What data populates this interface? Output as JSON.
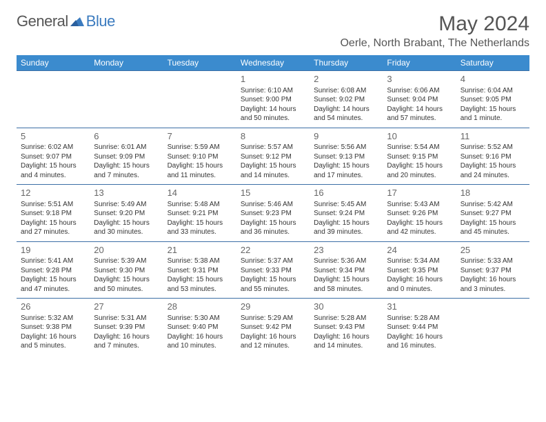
{
  "logo": {
    "general": "General",
    "blue": "Blue"
  },
  "title": "May 2024",
  "location": "Oerle, North Brabant, The Netherlands",
  "colors": {
    "header_bg": "#3b8bce",
    "header_fg": "#ffffff",
    "row_border": "#3b6ea5",
    "text": "#333333",
    "title_color": "#555555",
    "logo_blue": "#3b7bbf"
  },
  "weekdays": [
    "Sunday",
    "Monday",
    "Tuesday",
    "Wednesday",
    "Thursday",
    "Friday",
    "Saturday"
  ],
  "weeks": [
    [
      null,
      null,
      null,
      {
        "d": "1",
        "sunrise": "6:10 AM",
        "sunset": "9:00 PM",
        "daylight": "14 hours and 50 minutes."
      },
      {
        "d": "2",
        "sunrise": "6:08 AM",
        "sunset": "9:02 PM",
        "daylight": "14 hours and 54 minutes."
      },
      {
        "d": "3",
        "sunrise": "6:06 AM",
        "sunset": "9:04 PM",
        "daylight": "14 hours and 57 minutes."
      },
      {
        "d": "4",
        "sunrise": "6:04 AM",
        "sunset": "9:05 PM",
        "daylight": "15 hours and 1 minute."
      }
    ],
    [
      {
        "d": "5",
        "sunrise": "6:02 AM",
        "sunset": "9:07 PM",
        "daylight": "15 hours and 4 minutes."
      },
      {
        "d": "6",
        "sunrise": "6:01 AM",
        "sunset": "9:09 PM",
        "daylight": "15 hours and 7 minutes."
      },
      {
        "d": "7",
        "sunrise": "5:59 AM",
        "sunset": "9:10 PM",
        "daylight": "15 hours and 11 minutes."
      },
      {
        "d": "8",
        "sunrise": "5:57 AM",
        "sunset": "9:12 PM",
        "daylight": "15 hours and 14 minutes."
      },
      {
        "d": "9",
        "sunrise": "5:56 AM",
        "sunset": "9:13 PM",
        "daylight": "15 hours and 17 minutes."
      },
      {
        "d": "10",
        "sunrise": "5:54 AM",
        "sunset": "9:15 PM",
        "daylight": "15 hours and 20 minutes."
      },
      {
        "d": "11",
        "sunrise": "5:52 AM",
        "sunset": "9:16 PM",
        "daylight": "15 hours and 24 minutes."
      }
    ],
    [
      {
        "d": "12",
        "sunrise": "5:51 AM",
        "sunset": "9:18 PM",
        "daylight": "15 hours and 27 minutes."
      },
      {
        "d": "13",
        "sunrise": "5:49 AM",
        "sunset": "9:20 PM",
        "daylight": "15 hours and 30 minutes."
      },
      {
        "d": "14",
        "sunrise": "5:48 AM",
        "sunset": "9:21 PM",
        "daylight": "15 hours and 33 minutes."
      },
      {
        "d": "15",
        "sunrise": "5:46 AM",
        "sunset": "9:23 PM",
        "daylight": "15 hours and 36 minutes."
      },
      {
        "d": "16",
        "sunrise": "5:45 AM",
        "sunset": "9:24 PM",
        "daylight": "15 hours and 39 minutes."
      },
      {
        "d": "17",
        "sunrise": "5:43 AM",
        "sunset": "9:26 PM",
        "daylight": "15 hours and 42 minutes."
      },
      {
        "d": "18",
        "sunrise": "5:42 AM",
        "sunset": "9:27 PM",
        "daylight": "15 hours and 45 minutes."
      }
    ],
    [
      {
        "d": "19",
        "sunrise": "5:41 AM",
        "sunset": "9:28 PM",
        "daylight": "15 hours and 47 minutes."
      },
      {
        "d": "20",
        "sunrise": "5:39 AM",
        "sunset": "9:30 PM",
        "daylight": "15 hours and 50 minutes."
      },
      {
        "d": "21",
        "sunrise": "5:38 AM",
        "sunset": "9:31 PM",
        "daylight": "15 hours and 53 minutes."
      },
      {
        "d": "22",
        "sunrise": "5:37 AM",
        "sunset": "9:33 PM",
        "daylight": "15 hours and 55 minutes."
      },
      {
        "d": "23",
        "sunrise": "5:36 AM",
        "sunset": "9:34 PM",
        "daylight": "15 hours and 58 minutes."
      },
      {
        "d": "24",
        "sunrise": "5:34 AM",
        "sunset": "9:35 PM",
        "daylight": "16 hours and 0 minutes."
      },
      {
        "d": "25",
        "sunrise": "5:33 AM",
        "sunset": "9:37 PM",
        "daylight": "16 hours and 3 minutes."
      }
    ],
    [
      {
        "d": "26",
        "sunrise": "5:32 AM",
        "sunset": "9:38 PM",
        "daylight": "16 hours and 5 minutes."
      },
      {
        "d": "27",
        "sunrise": "5:31 AM",
        "sunset": "9:39 PM",
        "daylight": "16 hours and 7 minutes."
      },
      {
        "d": "28",
        "sunrise": "5:30 AM",
        "sunset": "9:40 PM",
        "daylight": "16 hours and 10 minutes."
      },
      {
        "d": "29",
        "sunrise": "5:29 AM",
        "sunset": "9:42 PM",
        "daylight": "16 hours and 12 minutes."
      },
      {
        "d": "30",
        "sunrise": "5:28 AM",
        "sunset": "9:43 PM",
        "daylight": "16 hours and 14 minutes."
      },
      {
        "d": "31",
        "sunrise": "5:28 AM",
        "sunset": "9:44 PM",
        "daylight": "16 hours and 16 minutes."
      },
      null
    ]
  ],
  "labels": {
    "sunrise": "Sunrise: ",
    "sunset": "Sunset: ",
    "daylight": "Daylight: "
  }
}
